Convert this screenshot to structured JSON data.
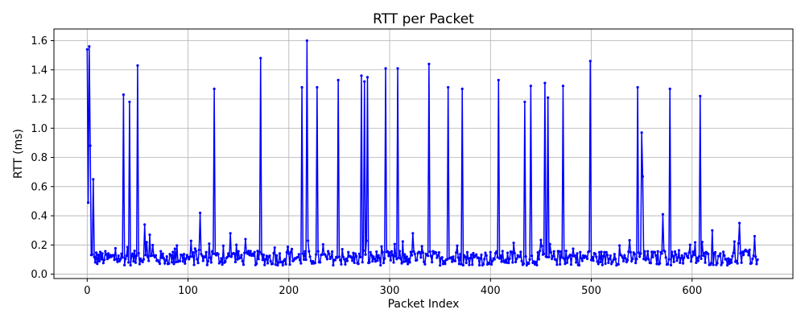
{
  "chart_data": {
    "type": "line",
    "title": "RTT per Packet",
    "xlabel": "Packet Index",
    "ylabel": "RTT (ms)",
    "xlim": [
      -33,
      700
    ],
    "ylim": [
      -0.03,
      1.68
    ],
    "xticks": [
      0,
      100,
      200,
      300,
      400,
      500,
      600
    ],
    "xtick_labels": [
      "0",
      "100",
      "200",
      "300",
      "400",
      "500",
      "600"
    ],
    "yticks": [
      0.0,
      0.2,
      0.4,
      0.6,
      0.8,
      1.0,
      1.2,
      1.4,
      1.6
    ],
    "ytick_labels": [
      "0.0",
      "0.2",
      "0.4",
      "0.6",
      "0.8",
      "1.0",
      "1.2",
      "1.4",
      "1.6"
    ],
    "grid": true,
    "color": "#0000ff",
    "marker": "circle",
    "n_points": 666,
    "baseline": 0.12,
    "spikes": [
      [
        0,
        1.54
      ],
      [
        1,
        0.49
      ],
      [
        2,
        1.56
      ],
      [
        3,
        0.88
      ],
      [
        6,
        0.65
      ],
      [
        36,
        1.23
      ],
      [
        42,
        1.18
      ],
      [
        50,
        1.43
      ],
      [
        57,
        0.34
      ],
      [
        62,
        0.27
      ],
      [
        112,
        0.42
      ],
      [
        126,
        1.27
      ],
      [
        142,
        0.28
      ],
      [
        157,
        0.24
      ],
      [
        172,
        1.48
      ],
      [
        213,
        1.28
      ],
      [
        218,
        1.6
      ],
      [
        228,
        1.28
      ],
      [
        249,
        1.33
      ],
      [
        272,
        1.36
      ],
      [
        275,
        1.32
      ],
      [
        278,
        1.35
      ],
      [
        296,
        1.41
      ],
      [
        308,
        1.41
      ],
      [
        323,
        0.28
      ],
      [
        339,
        1.44
      ],
      [
        358,
        1.28
      ],
      [
        372,
        1.27
      ],
      [
        408,
        1.33
      ],
      [
        434,
        1.18
      ],
      [
        440,
        1.29
      ],
      [
        454,
        1.31
      ],
      [
        457,
        1.21
      ],
      [
        472,
        1.29
      ],
      [
        499,
        1.46
      ],
      [
        546,
        1.28
      ],
      [
        550,
        0.97
      ],
      [
        551,
        0.67
      ],
      [
        571,
        0.41
      ],
      [
        578,
        1.27
      ],
      [
        608,
        1.22
      ],
      [
        620,
        0.3
      ],
      [
        647,
        0.35
      ],
      [
        662,
        0.26
      ]
    ]
  }
}
